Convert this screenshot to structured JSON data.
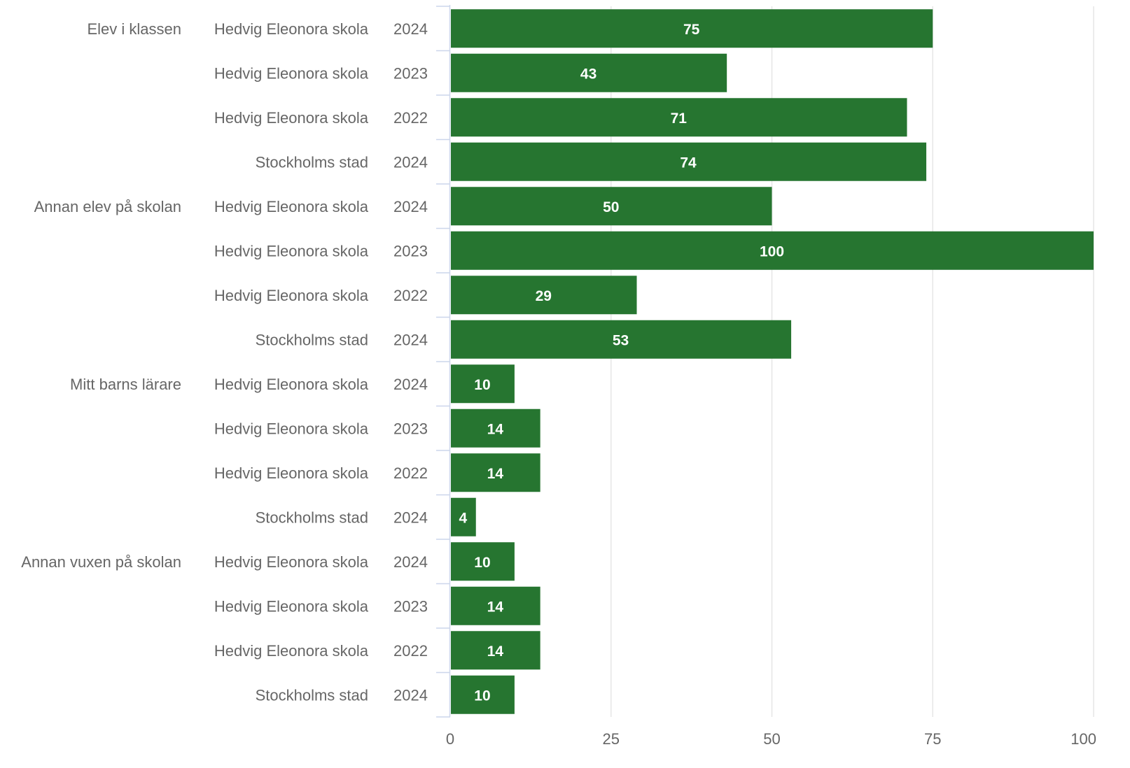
{
  "chart_data": {
    "type": "bar",
    "orientation": "horizontal",
    "title": "",
    "xlabel": "",
    "ylabel": "",
    "xlim": [
      0,
      100
    ],
    "x_ticks": [
      "0",
      "25",
      "50",
      "75",
      "100"
    ],
    "grid": true,
    "legend": "none",
    "colors": {
      "bar": "#267530",
      "grid": "#e6e6e6",
      "axis": "#ccd6eb",
      "label_text": "#666666",
      "data_label_text": "#ffffff"
    },
    "groups": [
      {
        "category": "Elev i klassen",
        "rows": [
          {
            "unit": "Hedvig Eleonora skola",
            "year": "2024",
            "value": 75,
            "label": "75"
          },
          {
            "unit": "Hedvig Eleonora skola",
            "year": "2023",
            "value": 43,
            "label": "43"
          },
          {
            "unit": "Hedvig Eleonora skola",
            "year": "2022",
            "value": 71,
            "label": "71"
          },
          {
            "unit": "Stockholms stad",
            "year": "2024",
            "value": 74,
            "label": "74"
          }
        ]
      },
      {
        "category": "Annan elev på skolan",
        "rows": [
          {
            "unit": "Hedvig Eleonora skola",
            "year": "2024",
            "value": 50,
            "label": "50"
          },
          {
            "unit": "Hedvig Eleonora skola",
            "year": "2023",
            "value": 100,
            "label": "100"
          },
          {
            "unit": "Hedvig Eleonora skola",
            "year": "2022",
            "value": 29,
            "label": "29"
          },
          {
            "unit": "Stockholms stad",
            "year": "2024",
            "value": 53,
            "label": "53"
          }
        ]
      },
      {
        "category": "Mitt barns lärare",
        "rows": [
          {
            "unit": "Hedvig Eleonora skola",
            "year": "2024",
            "value": 10,
            "label": "10"
          },
          {
            "unit": "Hedvig Eleonora skola",
            "year": "2023",
            "value": 14,
            "label": "14"
          },
          {
            "unit": "Hedvig Eleonora skola",
            "year": "2022",
            "value": 14,
            "label": "14"
          },
          {
            "unit": "Stockholms stad",
            "year": "2024",
            "value": 4,
            "label": "4"
          }
        ]
      },
      {
        "category": "Annan vuxen på skolan",
        "rows": [
          {
            "unit": "Hedvig Eleonora skola",
            "year": "2024",
            "value": 10,
            "label": "10"
          },
          {
            "unit": "Hedvig Eleonora skola",
            "year": "2023",
            "value": 14,
            "label": "14"
          },
          {
            "unit": "Hedvig Eleonora skola",
            "year": "2022",
            "value": 14,
            "label": "14"
          },
          {
            "unit": "Stockholms stad",
            "year": "2024",
            "value": 10,
            "label": "10"
          }
        ]
      }
    ]
  }
}
